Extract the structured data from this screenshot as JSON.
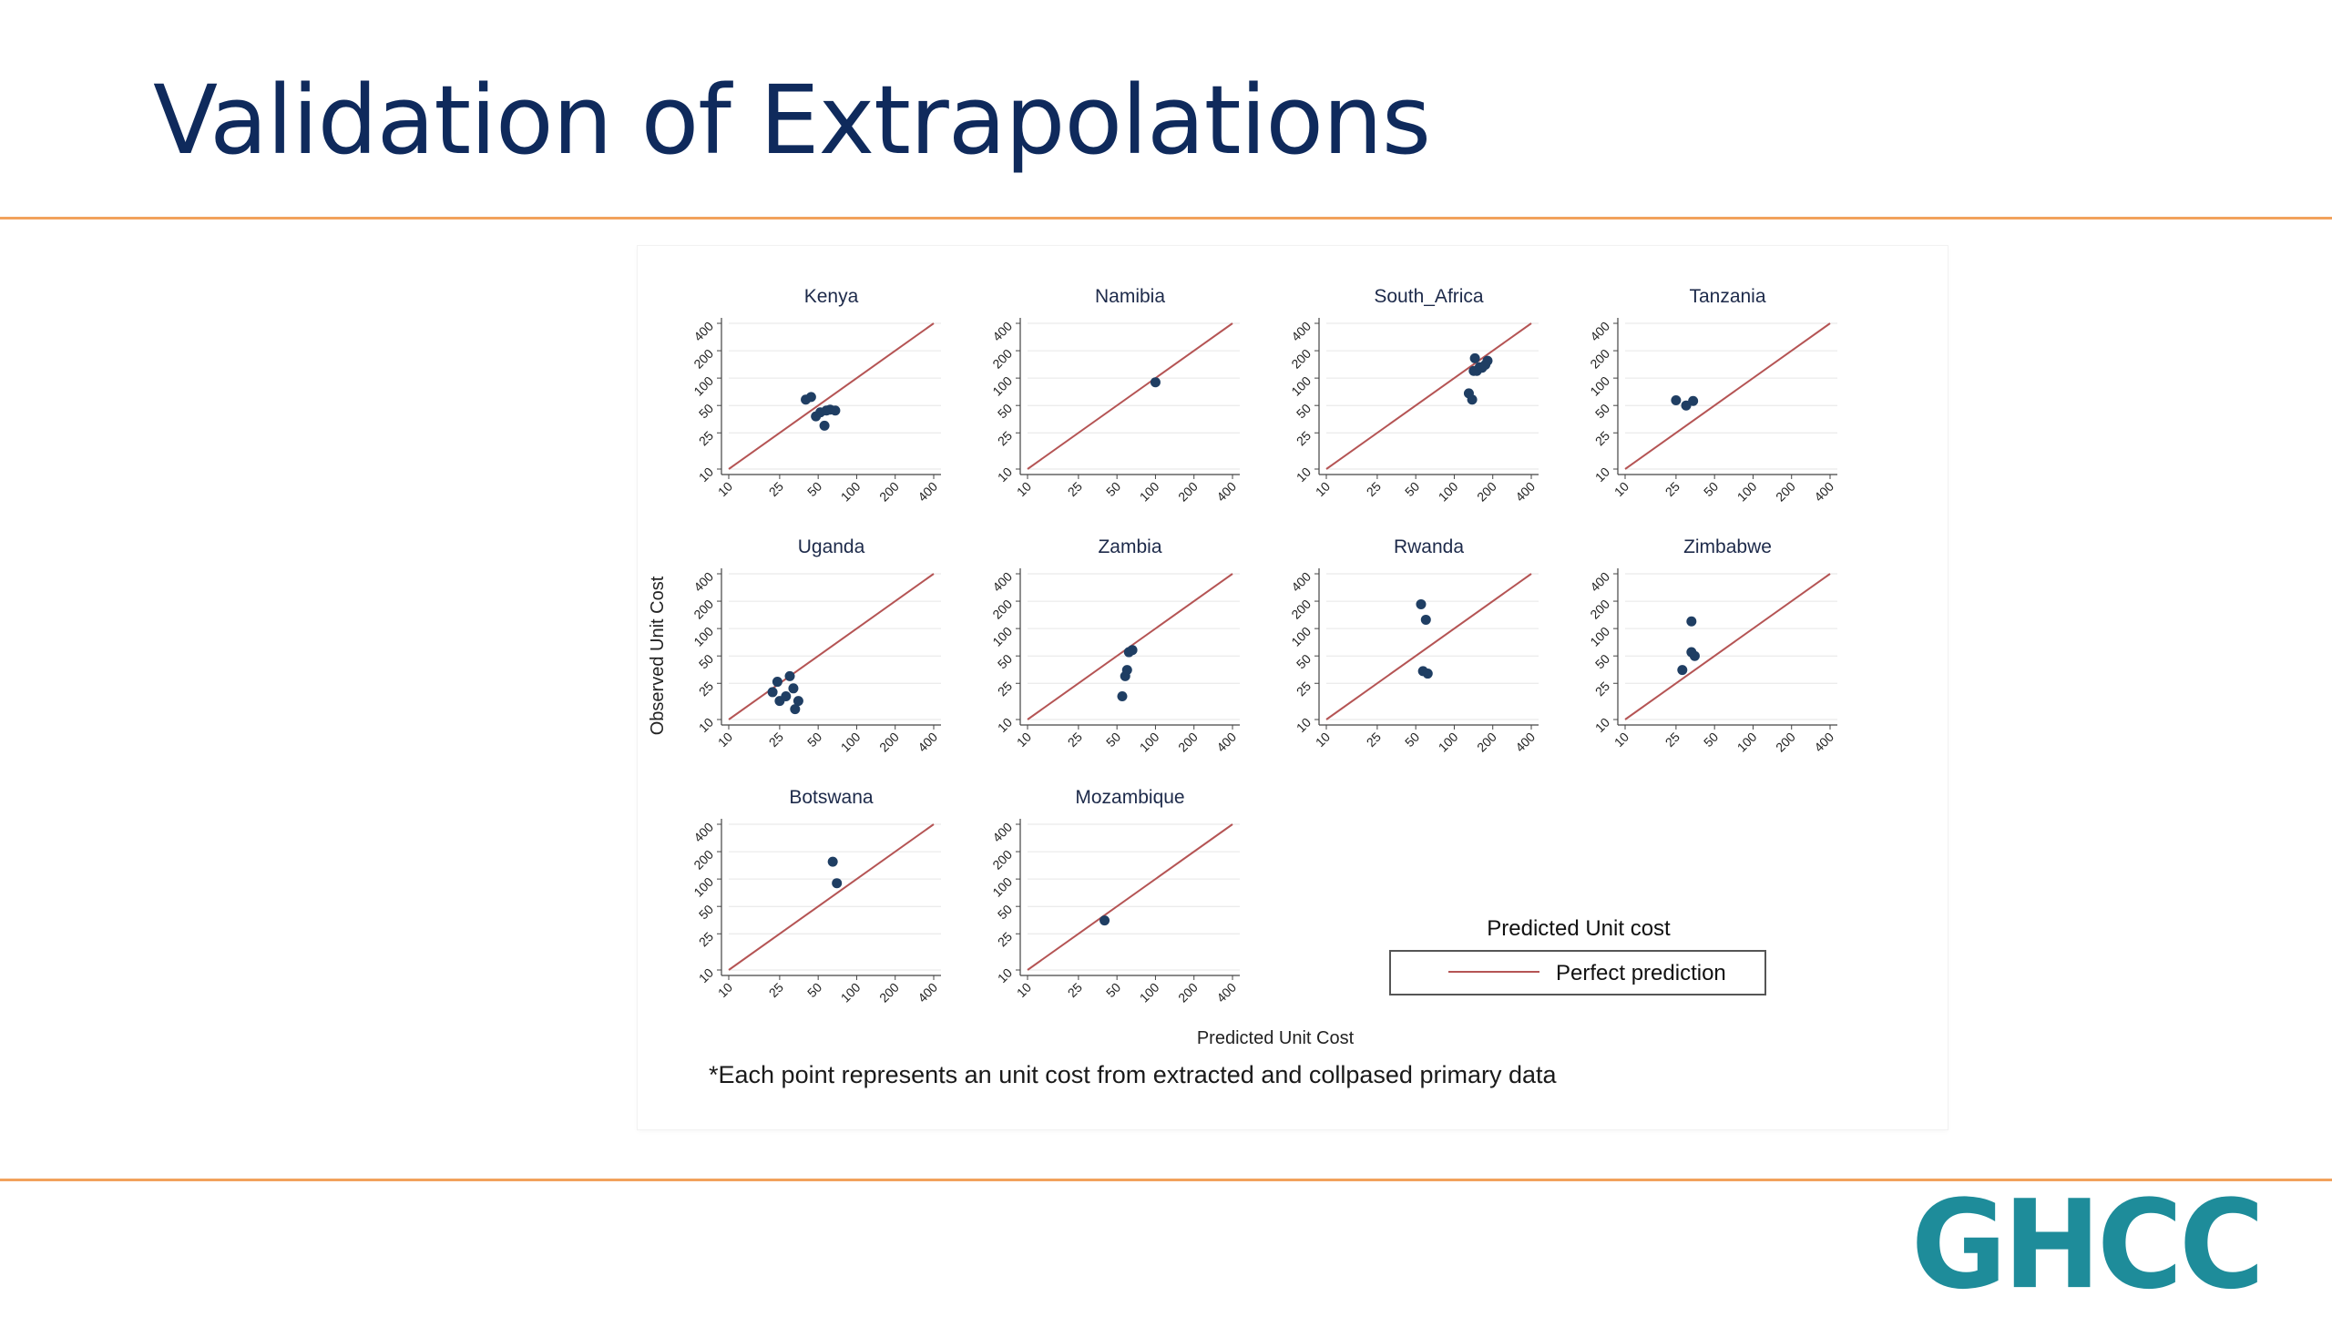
{
  "slide": {
    "title": "Validation of Extrapolations",
    "footnote": "*Each point represents an unit cost from extracted and collpased primary data",
    "logo_text": "GHCC"
  },
  "colors": {
    "title": "#0f2a5c",
    "rule": "#f2a25c",
    "marker": "#1f3e63",
    "perfect_line": "#b55454",
    "logo": "#1e8c9a"
  },
  "chart_data": {
    "type": "scatter",
    "scale": "log",
    "xlabel": "Predicted Unit Cost",
    "ylabel": "Observed Unit Cost",
    "xticks": [
      10,
      25,
      50,
      100,
      200,
      400
    ],
    "yticks": [
      10,
      25,
      50,
      100,
      200,
      400
    ],
    "xlim": [
      10,
      400
    ],
    "ylim": [
      10,
      400
    ],
    "grid": "horizontal",
    "legend": {
      "title": "Predicted Unit cost",
      "entries": [
        "Perfect prediction"
      ],
      "position": "bottom-right"
    },
    "panels": [
      {
        "title": "Kenya",
        "points": [
          [
            40,
            58
          ],
          [
            44,
            62
          ],
          [
            48,
            38
          ],
          [
            52,
            42
          ],
          [
            56,
            30
          ],
          [
            58,
            44
          ],
          [
            62,
            45
          ],
          [
            68,
            44
          ]
        ]
      },
      {
        "title": "Namibia",
        "points": [
          [
            100,
            90
          ]
        ]
      },
      {
        "title": "South_Africa",
        "points": [
          [
            130,
            68
          ],
          [
            138,
            58
          ],
          [
            142,
            120
          ],
          [
            145,
            165
          ],
          [
            150,
            120
          ],
          [
            158,
            132
          ],
          [
            165,
            130
          ],
          [
            175,
            140
          ],
          [
            182,
            155
          ]
        ]
      },
      {
        "title": "Tanzania",
        "points": [
          [
            25,
            57
          ],
          [
            30,
            50
          ],
          [
            34,
            56
          ]
        ]
      },
      {
        "title": "Uganda",
        "points": [
          [
            22,
            20
          ],
          [
            24,
            26
          ],
          [
            25,
            16
          ],
          [
            28,
            18
          ],
          [
            30,
            30
          ],
          [
            32,
            22
          ],
          [
            33,
            13
          ],
          [
            35,
            16
          ]
        ]
      },
      {
        "title": "Zambia",
        "points": [
          [
            55,
            18
          ],
          [
            58,
            30
          ],
          [
            60,
            35
          ],
          [
            62,
            55
          ],
          [
            66,
            58
          ]
        ]
      },
      {
        "title": "Rwanda",
        "points": [
          [
            55,
            185
          ],
          [
            60,
            125
          ],
          [
            57,
            34
          ],
          [
            62,
            32
          ]
        ]
      },
      {
        "title": "Zimbabwe",
        "points": [
          [
            28,
            35
          ],
          [
            33,
            120
          ],
          [
            33,
            55
          ],
          [
            35,
            50
          ]
        ]
      },
      {
        "title": "Botswana",
        "points": [
          [
            65,
            155
          ],
          [
            70,
            90
          ]
        ]
      },
      {
        "title": "Mozambique",
        "points": [
          [
            40,
            35
          ]
        ]
      }
    ]
  }
}
